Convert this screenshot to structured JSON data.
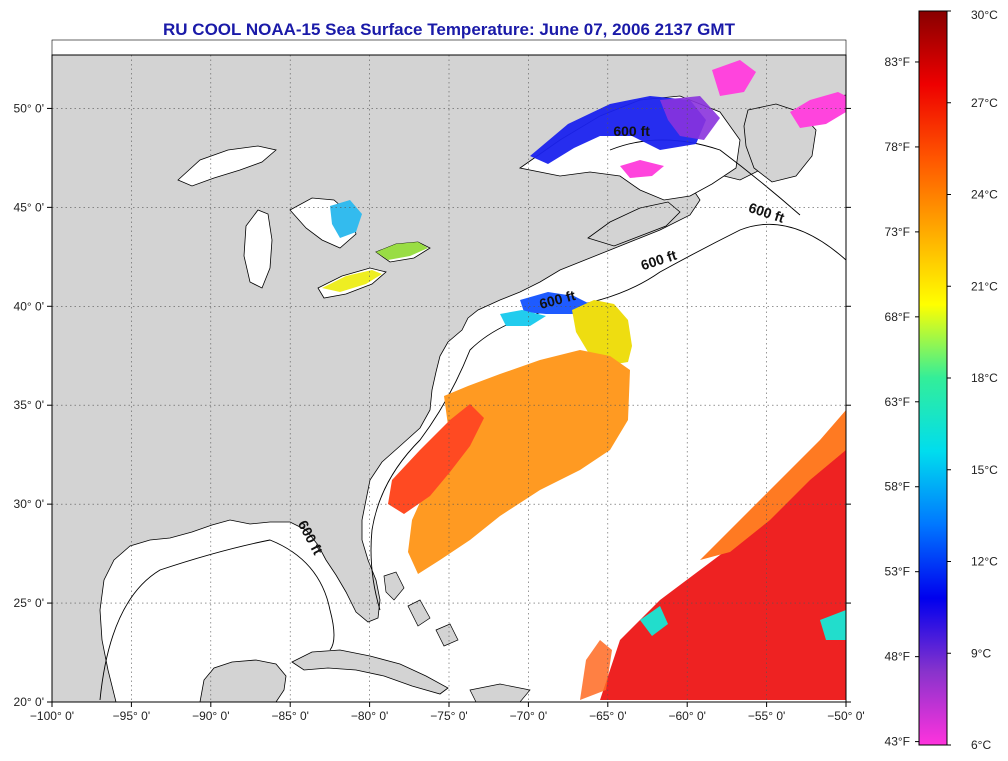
{
  "title": "RU COOL  NOAA-15  Sea Surface Temperature:  June 07, 2006 2137 GMT",
  "map": {
    "lon_range": [
      -100,
      -50
    ],
    "lat_range": [
      20,
      52.7
    ],
    "lon_ticks": [
      {
        "value": -100,
        "label": "−100° 0'"
      },
      {
        "value": -95,
        "label": "−95° 0'"
      },
      {
        "value": -90,
        "label": "−90° 0'"
      },
      {
        "value": -85,
        "label": "−85° 0'"
      },
      {
        "value": -80,
        "label": "−80° 0'"
      },
      {
        "value": -75,
        "label": "−75° 0'"
      },
      {
        "value": -70,
        "label": "−70° 0'"
      },
      {
        "value": -65,
        "label": "−65° 0'"
      },
      {
        "value": -60,
        "label": "−60° 0'"
      },
      {
        "value": -55,
        "label": "−55° 0'"
      },
      {
        "value": -50,
        "label": "−50° 0'"
      }
    ],
    "lat_ticks": [
      {
        "value": 20,
        "label": "20° 0'"
      },
      {
        "value": 25,
        "label": "25° 0'"
      },
      {
        "value": 30,
        "label": "30° 0'"
      },
      {
        "value": 35,
        "label": "35° 0'"
      },
      {
        "value": 40,
        "label": "40° 0'"
      },
      {
        "value": 45,
        "label": "45° 0'"
      },
      {
        "value": 50,
        "label": "50° 0'"
      }
    ],
    "contour_labels": [
      {
        "text": "600 ft",
        "lon": -63.5,
        "lat": 48.6,
        "rotate": 0
      },
      {
        "text": "600 ft",
        "lon": -55.1,
        "lat": 44.5,
        "rotate": 18
      },
      {
        "text": "600 ft",
        "lon": -61.7,
        "lat": 42.1,
        "rotate": -18
      },
      {
        "text": "600 ft",
        "lon": -68.1,
        "lat": 40.1,
        "rotate": -15
      },
      {
        "text": "600 ft",
        "lon": -84.0,
        "lat": 28.2,
        "rotate": 62
      }
    ],
    "land_color": "#d3d3d3",
    "ocean_color": "#ffffff"
  },
  "colorbar": {
    "colors": [
      "#ff33dd",
      "#8833cc",
      "#0000ee",
      "#0077ff",
      "#00ddee",
      "#33ee99",
      "#ffff00",
      "#ffaa00",
      "#ff5500",
      "#ee0000",
      "#880000"
    ],
    "celsius": [
      {
        "value": 30,
        "label": "30°C"
      },
      {
        "value": 27,
        "label": "27°C"
      },
      {
        "value": 24,
        "label": "24°C"
      },
      {
        "value": 21,
        "label": "21°C"
      },
      {
        "value": 18,
        "label": "18°C"
      },
      {
        "value": 15,
        "label": "15°C"
      },
      {
        "value": 12,
        "label": "12°C"
      },
      {
        "value": 9,
        "label": "9°C"
      },
      {
        "value": 6,
        "label": "6°C"
      }
    ],
    "fahrenheit": [
      {
        "value": 83,
        "label": "83°F"
      },
      {
        "value": 78,
        "label": "78°F"
      },
      {
        "value": 73,
        "label": "73°F"
      },
      {
        "value": 68,
        "label": "68°F"
      },
      {
        "value": 63,
        "label": "63°F"
      },
      {
        "value": 58,
        "label": "58°F"
      },
      {
        "value": 53,
        "label": "53°F"
      },
      {
        "value": 48,
        "label": "48°F"
      },
      {
        "value": 43,
        "label": "43°F"
      }
    ]
  }
}
